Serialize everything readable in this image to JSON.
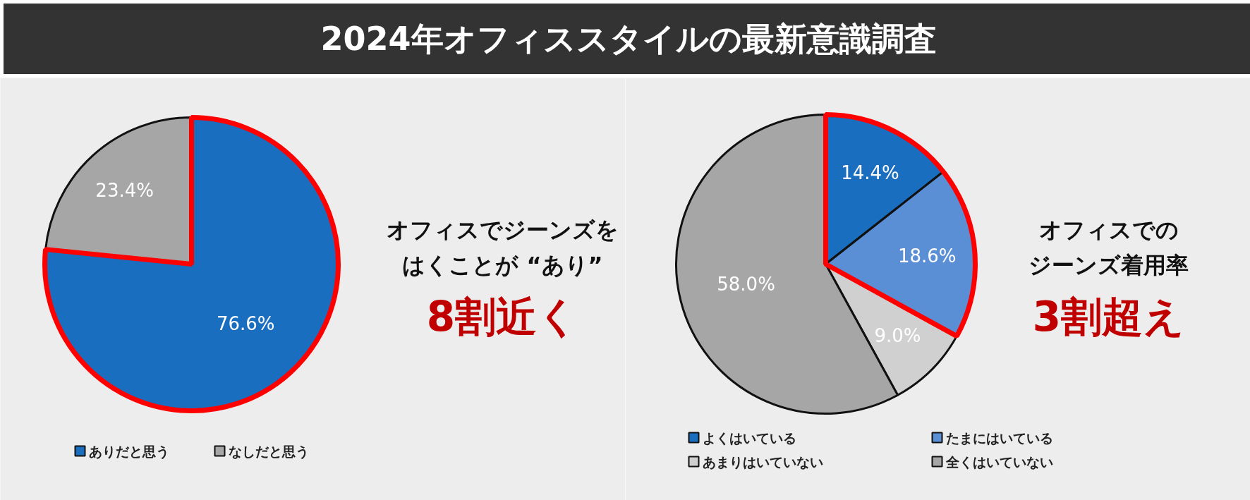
{
  "chart_data": [
    {
      "type": "pie",
      "title": "2024年オフィススタイルの最新意識調査",
      "categories": [
        "ありだと思う",
        "なしだと思う"
      ],
      "values": [
        76.6,
        23.4
      ],
      "colors": [
        "#1a6ec0",
        "#a6a6a6"
      ],
      "data_labels": true,
      "value_labels": [
        "76.6%",
        "23.4%"
      ],
      "legend": "bottom",
      "annotations": [
        "オフィスでジーンズを",
        "はくことが “あり”",
        "8割近く"
      ]
    },
    {
      "type": "pie",
      "categories": [
        "よくはいている",
        "たまにはいている",
        "あまりはいていない",
        "全くはいていない"
      ],
      "values": [
        14.4,
        18.6,
        9.0,
        58.0
      ],
      "colors": [
        "#1a6ec0",
        "#5a8fd6",
        "#d0d0d0",
        "#a6a6a6"
      ],
      "data_labels": true,
      "value_labels": [
        "14.4%",
        "18.6%",
        "9.0%",
        "58.0%"
      ],
      "legend": "bottom",
      "annotations": [
        "オフィスでの",
        "ジーンズ着用率",
        "3割超え"
      ]
    }
  ]
}
